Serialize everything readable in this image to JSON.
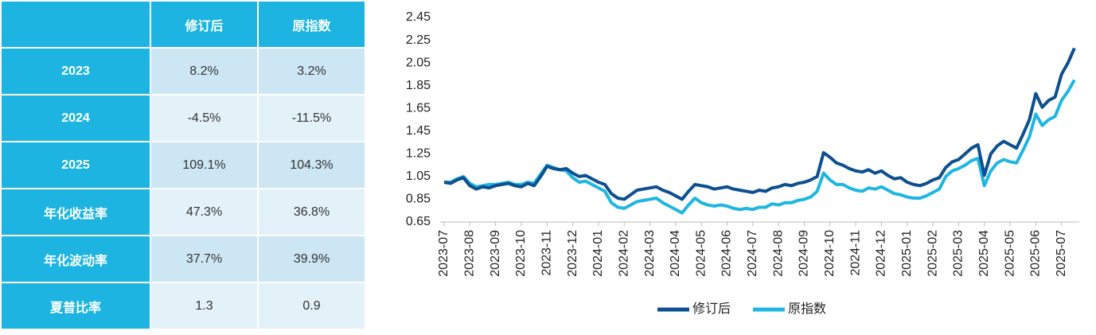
{
  "table": {
    "header": [
      "修订后",
      "原指数"
    ],
    "rows": [
      [
        "2023",
        "8.2%",
        "3.2%"
      ],
      [
        "2024",
        "-4.5%",
        "-11.5%"
      ],
      [
        "2025",
        "109.1%",
        "104.3%"
      ],
      [
        "年化收益率",
        "47.3%",
        "36.8%"
      ],
      [
        "年化波动率",
        "37.7%",
        "39.9%"
      ],
      [
        "夏普比率",
        "1.3",
        "0.9"
      ]
    ]
  },
  "chart_data": {
    "type": "line",
    "categories": [
      "2023-07",
      null,
      null,
      null,
      "2023-08",
      null,
      null,
      null,
      "2023-09",
      null,
      null,
      null,
      "2023-10",
      null,
      null,
      null,
      "2023-11",
      null,
      null,
      null,
      "2023-12",
      null,
      null,
      null,
      "2024-01",
      null,
      null,
      null,
      "2024-02",
      null,
      null,
      null,
      "2024-03",
      null,
      null,
      null,
      "2024-04",
      null,
      null,
      null,
      "2024-05",
      null,
      null,
      null,
      "2024-06",
      null,
      null,
      null,
      "2024-07",
      null,
      null,
      null,
      "2024-08",
      null,
      null,
      null,
      "2024-09",
      null,
      null,
      null,
      "2024-10",
      null,
      null,
      null,
      "2024-11",
      null,
      null,
      null,
      "2024-12",
      null,
      null,
      null,
      "2025-01",
      null,
      null,
      null,
      "2025-02",
      null,
      null,
      null,
      "2025-03",
      null,
      null,
      null,
      "2025-04",
      null,
      null,
      null,
      "2025-05",
      null,
      null,
      null,
      "2025-06",
      null,
      null,
      null,
      "2025-07",
      null,
      null
    ],
    "series": [
      {
        "name": "修订后",
        "color": "#0d4f8f",
        "values": [
          1.0,
          0.99,
          1.02,
          1.04,
          0.97,
          0.94,
          0.96,
          0.95,
          0.97,
          0.98,
          0.99,
          0.97,
          0.96,
          0.99,
          0.97,
          1.05,
          1.14,
          1.12,
          1.11,
          1.12,
          1.08,
          1.05,
          1.06,
          1.03,
          1.0,
          0.98,
          0.9,
          0.86,
          0.85,
          0.89,
          0.93,
          0.94,
          0.95,
          0.96,
          0.93,
          0.91,
          0.88,
          0.85,
          0.92,
          0.98,
          0.97,
          0.96,
          0.94,
          0.95,
          0.96,
          0.94,
          0.93,
          0.92,
          0.91,
          0.93,
          0.92,
          0.95,
          0.96,
          0.98,
          0.97,
          0.99,
          1.0,
          1.02,
          1.05,
          1.26,
          1.22,
          1.17,
          1.15,
          1.12,
          1.1,
          1.09,
          1.11,
          1.08,
          1.1,
          1.06,
          1.03,
          1.04,
          1.0,
          0.98,
          0.97,
          0.99,
          1.02,
          1.04,
          1.13,
          1.18,
          1.2,
          1.25,
          1.3,
          1.33,
          1.06,
          1.25,
          1.32,
          1.36,
          1.33,
          1.3,
          1.42,
          1.55,
          1.78,
          1.66,
          1.72,
          1.75,
          1.95,
          2.05,
          2.18
        ]
      },
      {
        "name": "原指数",
        "color": "#1fb6e2",
        "values": [
          1.0,
          1.0,
          1.03,
          1.05,
          0.99,
          0.96,
          0.97,
          0.98,
          0.98,
          0.99,
          1.0,
          0.98,
          0.98,
          1.0,
          0.99,
          1.07,
          1.15,
          1.13,
          1.11,
          1.1,
          1.04,
          1.0,
          1.01,
          0.98,
          0.95,
          0.92,
          0.82,
          0.78,
          0.77,
          0.8,
          0.83,
          0.84,
          0.85,
          0.86,
          0.82,
          0.79,
          0.76,
          0.73,
          0.8,
          0.86,
          0.82,
          0.8,
          0.79,
          0.8,
          0.79,
          0.77,
          0.76,
          0.77,
          0.76,
          0.78,
          0.78,
          0.81,
          0.8,
          0.82,
          0.82,
          0.84,
          0.85,
          0.87,
          0.92,
          1.08,
          1.02,
          0.98,
          0.98,
          0.95,
          0.93,
          0.92,
          0.95,
          0.94,
          0.96,
          0.93,
          0.9,
          0.89,
          0.87,
          0.86,
          0.86,
          0.88,
          0.91,
          0.94,
          1.05,
          1.1,
          1.12,
          1.15,
          1.19,
          1.21,
          0.97,
          1.1,
          1.17,
          1.2,
          1.18,
          1.17,
          1.28,
          1.4,
          1.6,
          1.5,
          1.55,
          1.58,
          1.72,
          1.8,
          1.9
        ]
      }
    ],
    "ylim": [
      0.65,
      2.45
    ],
    "yticks": [
      0.65,
      0.85,
      1.05,
      1.25,
      1.45,
      1.65,
      1.85,
      2.05,
      2.25,
      2.45
    ],
    "grid": false,
    "legend": "bottom"
  }
}
